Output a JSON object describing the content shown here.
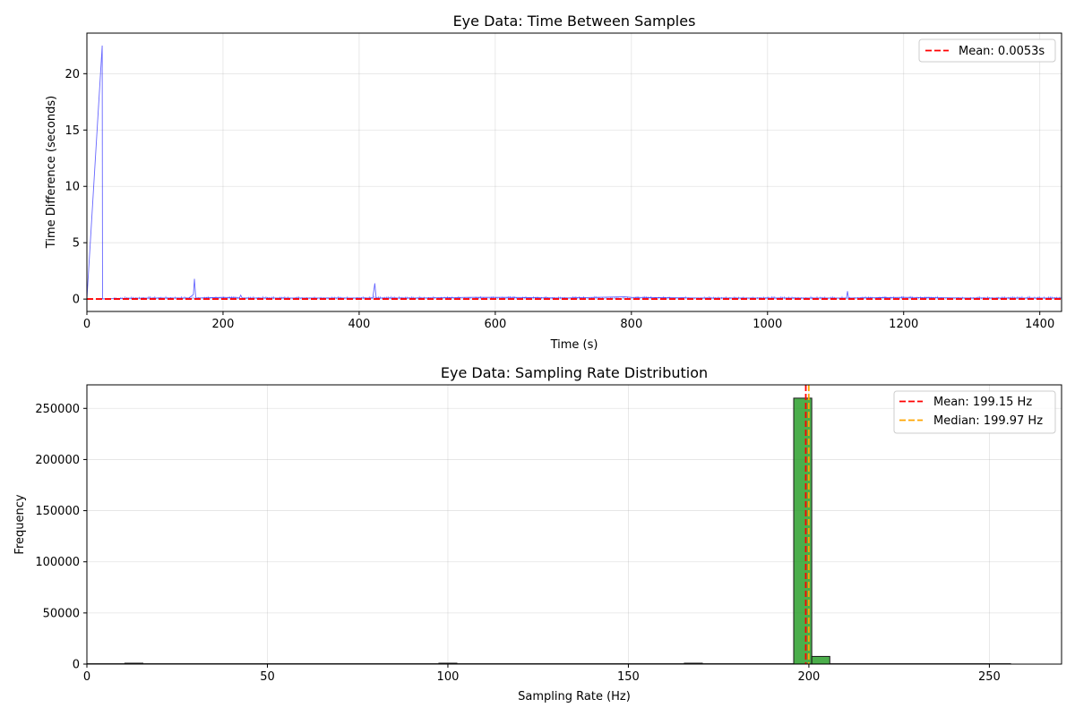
{
  "chart_data": [
    {
      "type": "line",
      "title": "Eye Data: Time Between Samples",
      "xlabel": "Time (s)",
      "ylabel": "Time Difference (seconds)",
      "xlim": [
        0,
        1432
      ],
      "ylim": [
        -1.1,
        23.6
      ],
      "xticks": [
        0,
        200,
        400,
        600,
        800,
        1000,
        1200,
        1400
      ],
      "yticks": [
        0,
        5,
        10,
        15,
        20
      ],
      "grid": true,
      "legend_position": "top-right",
      "series": [
        {
          "color": "#0000ff",
          "x": [
            0,
            22.5,
            23,
            60,
            100,
            150,
            156.5,
            158,
            160,
            200,
            224,
            226,
            228,
            300,
            350,
            400,
            420,
            423,
            425,
            480,
            560,
            620,
            700,
            790,
            800,
            900,
            1000,
            1060,
            1116,
            1117.5,
            1119,
            1200,
            1300,
            1400,
            1432
          ],
          "y": [
            0.005,
            22.5,
            0.02,
            0.08,
            0.1,
            0.1,
            0.4,
            1.8,
            0.1,
            0.15,
            0.1,
            0.35,
            0.1,
            0.1,
            0.1,
            0.1,
            0.1,
            1.4,
            0.1,
            0.1,
            0.15,
            0.15,
            0.1,
            0.2,
            0.15,
            0.1,
            0.1,
            0.1,
            0.1,
            0.7,
            0.1,
            0.15,
            0.1,
            0.1,
            0.1
          ]
        }
      ],
      "hlines": [
        {
          "label": "Mean: 0.0053s",
          "y": 0.0053,
          "color": "#ff0000"
        }
      ]
    },
    {
      "type": "histogram",
      "title": "Eye Data: Sampling Rate Distribution",
      "xlabel": "Sampling Rate (Hz)",
      "ylabel": "Frequency",
      "xlim": [
        0,
        270
      ],
      "ylim": [
        0,
        273000
      ],
      "xticks": [
        0,
        50,
        100,
        150,
        200,
        250
      ],
      "yticks": [
        0,
        50000,
        100000,
        150000,
        200000,
        250000
      ],
      "grid": true,
      "legend_position": "top-right",
      "bar_color": "#2ca02c",
      "bins": [
        {
          "x0": 10.5,
          "x1": 15.5,
          "count": 500
        },
        {
          "x0": 97.5,
          "x1": 102.5,
          "count": 600
        },
        {
          "x0": 165.5,
          "x1": 170.5,
          "count": 500
        },
        {
          "x0": 195.8,
          "x1": 200.8,
          "count": 260000
        },
        {
          "x0": 200.8,
          "x1": 205.8,
          "count": 7500
        }
      ],
      "vlines": [
        {
          "label": "Mean: 199.15 Hz",
          "x": 199.15,
          "color": "#ff0000"
        },
        {
          "label": "Median: 199.97 Hz",
          "x": 199.97,
          "color": "#ffa500"
        }
      ]
    }
  ]
}
